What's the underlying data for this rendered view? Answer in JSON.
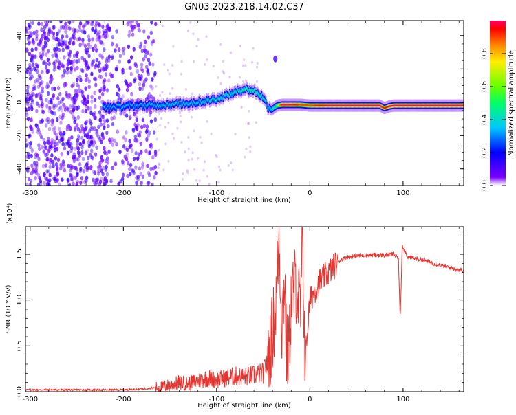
{
  "page_title": "GN03.2023.218.14.02.C37",
  "chart_data": [
    {
      "type": "heatmap",
      "xlabel": "Height of straight line (km)",
      "ylabel": "Frequency (Hz)",
      "xlim": [
        -305,
        165
      ],
      "ylim": [
        -50,
        49
      ],
      "x_ticks": [
        -300,
        -200,
        -100,
        0,
        100
      ],
      "x_tick_labels": [
        "-300",
        "-200",
        "-100",
        "0",
        "100"
      ],
      "y_ticks": [
        -40,
        -20,
        0,
        20,
        40
      ],
      "y_tick_labels": [
        "-40",
        "-20",
        "0",
        "20",
        "40"
      ],
      "ridge": {
        "x": [
          -222,
          -200,
          -180,
          -160,
          -140,
          -120,
          -100,
          -90,
          -80,
          -70,
          -60,
          -50,
          -45,
          -40,
          -35,
          -30,
          -20,
          -10,
          0,
          20,
          50,
          75,
          80,
          85,
          90,
          120,
          165
        ],
        "y": [
          -3,
          -2.5,
          -2,
          -1.5,
          -1,
          0,
          2,
          4,
          6,
          8,
          7,
          3,
          -3,
          -4,
          -2,
          -1.5,
          -1.5,
          -1.5,
          -2,
          -2,
          -2,
          -2,
          -3.5,
          -2.5,
          -2,
          -2,
          -2
        ],
        "amplitude": [
          0.35,
          0.35,
          0.35,
          0.4,
          0.4,
          0.4,
          0.45,
          0.45,
          0.45,
          0.5,
          0.5,
          0.45,
          0.4,
          0.45,
          0.6,
          1.0,
          1.0,
          0.9,
          0.9,
          1.0,
          1.0,
          1.0,
          0.95,
          1.0,
          1.0,
          1.0,
          1.0
        ]
      },
      "noise_region": [
        -305,
        -165
      ],
      "grid": false,
      "colorbar": {
        "label": "Normalized spectral amplitude",
        "range": [
          0,
          1
        ],
        "ticks": [
          0,
          0.2,
          0.4,
          0.6,
          0.8
        ],
        "tick_labels": [
          "0.0",
          "0.2",
          "0.4",
          "0.6",
          "0.8"
        ]
      }
    },
    {
      "type": "line",
      "xlabel": "Height of straight line (km)",
      "ylabel": "SNR (10 * v/v)",
      "y_multiplier": "(x10⁴)",
      "xlim": [
        -305,
        165
      ],
      "ylim": [
        0,
        1.8
      ],
      "x_ticks": [
        -300,
        -200,
        -100,
        0,
        100
      ],
      "x_tick_labels": [
        "-300",
        "-200",
        "-100",
        "0",
        "100"
      ],
      "y_ticks": [
        0,
        0.5,
        1.0,
        1.5
      ],
      "y_tick_labels": [
        "0.0",
        "0.5",
        "1.0",
        "1.5"
      ],
      "grid": false,
      "series": [
        {
          "color": "#e8342f",
          "x": [
            -305,
            -280,
            -250,
            -220,
            -200,
            -180,
            -160,
            -150,
            -140,
            -130,
            -120,
            -110,
            -100,
            -90,
            -80,
            -70,
            -60,
            -50,
            -45,
            -40,
            -36,
            -33,
            -30,
            -27,
            -25,
            -22,
            -20,
            -15,
            -10,
            -8,
            -5,
            0,
            10,
            20,
            30,
            40,
            60,
            80,
            90,
            95,
            97,
            99,
            105,
            120,
            140,
            165
          ],
          "y": [
            0.02,
            0.02,
            0.02,
            0.02,
            0.02,
            0.03,
            0.05,
            0.07,
            0.1,
            0.09,
            0.12,
            0.15,
            0.13,
            0.15,
            0.17,
            0.16,
            0.18,
            0.2,
            0.35,
            0.65,
            1.0,
            1.7,
            0.7,
            1.3,
            0.4,
            0.5,
            1.0,
            1.2,
            0.85,
            1.6,
            0.35,
            1.0,
            1.2,
            1.3,
            1.42,
            1.47,
            1.49,
            1.49,
            1.5,
            1.45,
            0.77,
            1.6,
            1.47,
            1.44,
            1.38,
            1.32
          ]
        }
      ]
    }
  ]
}
